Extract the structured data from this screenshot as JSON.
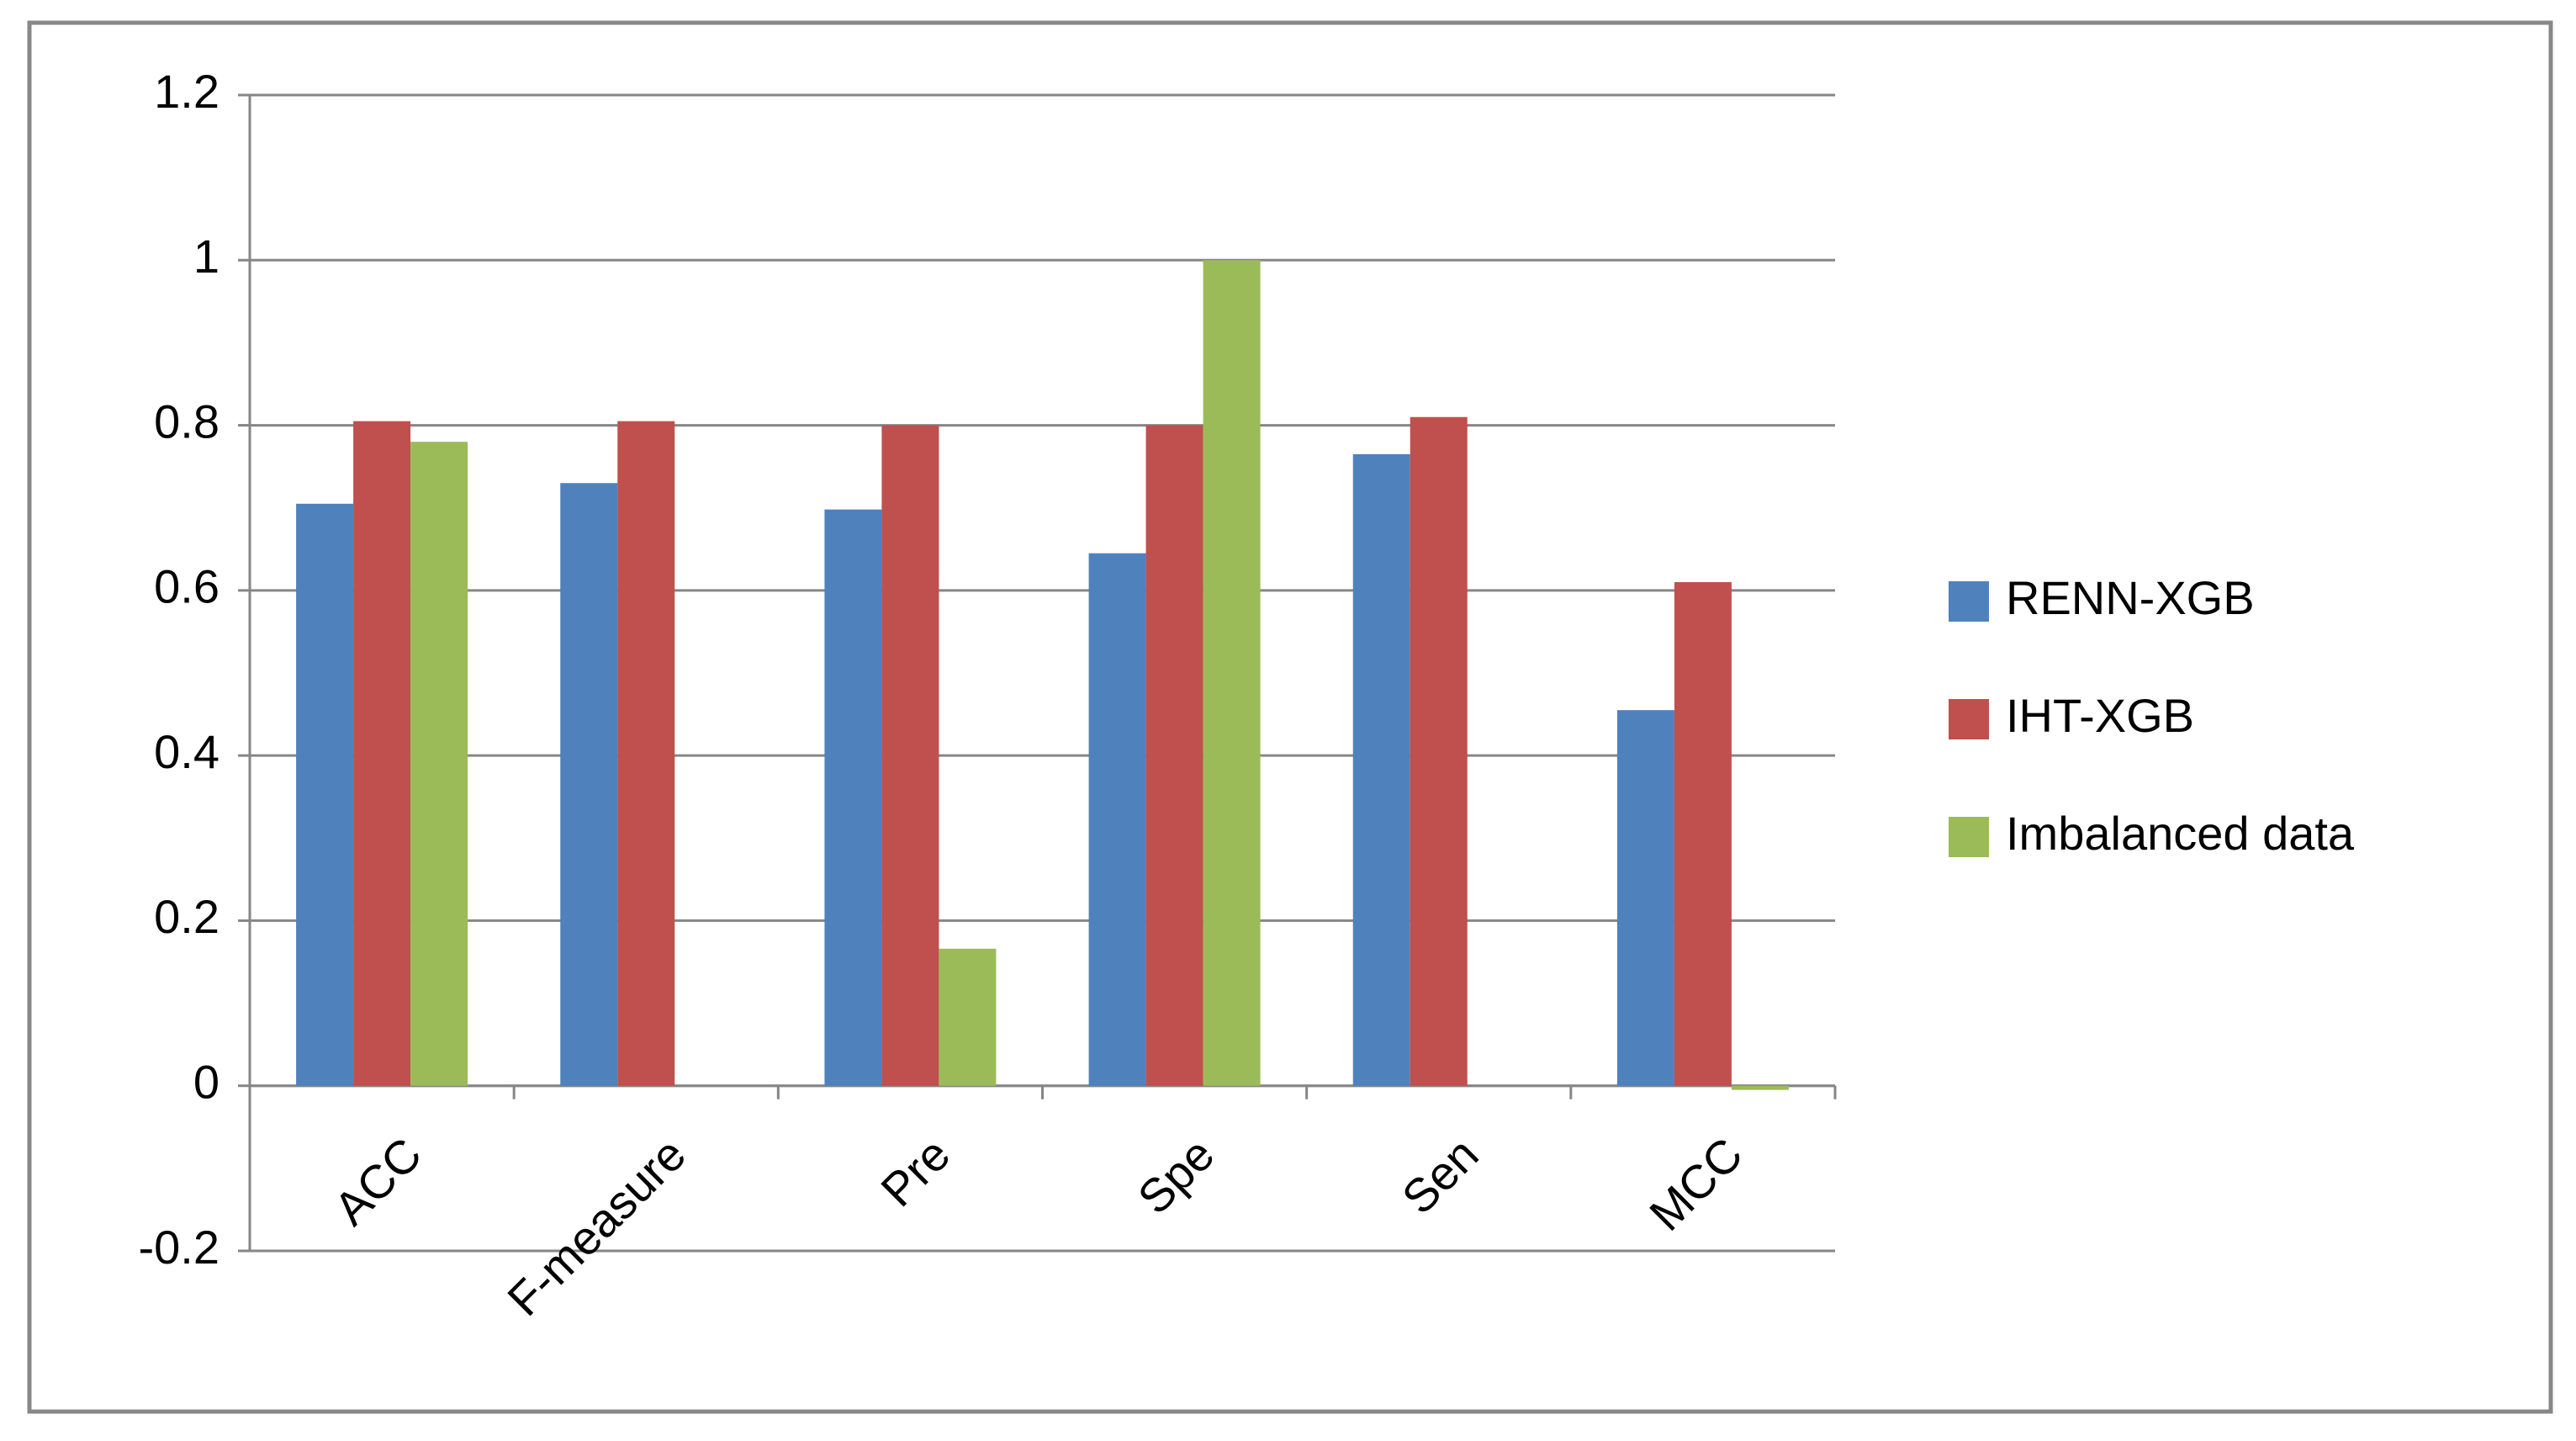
{
  "chart_data": {
    "type": "bar",
    "categories": [
      "ACC",
      "F-measure",
      "Pre",
      "Spe",
      "Sen",
      "MCC"
    ],
    "series": [
      {
        "name": "RENN-XGB",
        "color": "#4f81bd",
        "values": [
          0.705,
          0.73,
          0.698,
          0.645,
          0.765,
          0.455
        ]
      },
      {
        "name": "IHT-XGB",
        "color": "#c0504d",
        "values": [
          0.805,
          0.805,
          0.8,
          0.8,
          0.81,
          0.61
        ]
      },
      {
        "name": "Imbalanced data",
        "color": "#9bbb59",
        "values": [
          0.78,
          0,
          0.166,
          1.0,
          0,
          -0.005
        ]
      }
    ],
    "ylim": [
      -0.2,
      1.2
    ],
    "yticks": [
      -0.2,
      0,
      0.2,
      0.4,
      0.6,
      0.8,
      1,
      1.2
    ],
    "grid": true,
    "legend": "right"
  }
}
